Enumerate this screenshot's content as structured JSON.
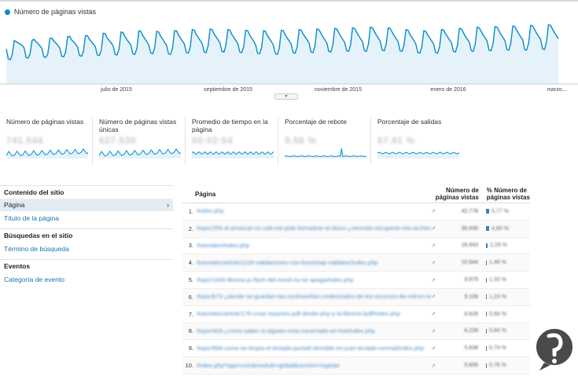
{
  "chart": {
    "legend": "Número de páginas vistas",
    "color": "#058dc7",
    "x_labels": [
      "julio de 2015",
      "septiembre de 2015",
      "noviembre de 2015",
      "enero de 2016",
      "marzo..."
    ]
  },
  "chart_data": {
    "type": "line",
    "series": [
      {
        "name": "Número de páginas vistas",
        "values": [
          58,
          42,
          40,
          48,
          72,
          70,
          68,
          66,
          64,
          60,
          44,
          43,
          50,
          72,
          74,
          70,
          67,
          63,
          59,
          45,
          44,
          50,
          75,
          76,
          71,
          68,
          64,
          60,
          46,
          45,
          53,
          78,
          79,
          73,
          70,
          66,
          61,
          47,
          46,
          54,
          80,
          80,
          74,
          70,
          66,
          62,
          48,
          47,
          56,
          84,
          83,
          76,
          72,
          68,
          63,
          49,
          48,
          58,
          86,
          85,
          78,
          73,
          69,
          64,
          50,
          49,
          59,
          88,
          87,
          80,
          75,
          70,
          65,
          51,
          50,
          60,
          87,
          86,
          79,
          74,
          69,
          64,
          50,
          49,
          59,
          88,
          88,
          81,
          76,
          71,
          66,
          52,
          51,
          62,
          90,
          89,
          82,
          77,
          72,
          67,
          53,
          52,
          63,
          91,
          90,
          83,
          78,
          73,
          68,
          54,
          53,
          64,
          90,
          89,
          82,
          77,
          72,
          67,
          53,
          52,
          62,
          89,
          88,
          81,
          76,
          71,
          65,
          51,
          50,
          60,
          88,
          87,
          80,
          75,
          70,
          64,
          50,
          49,
          60,
          89,
          88,
          81,
          76,
          71,
          66,
          52,
          51,
          62,
          90,
          89,
          83,
          78,
          73,
          68,
          53,
          52,
          63,
          91,
          90,
          84,
          78,
          73,
          68,
          54,
          53,
          64,
          92,
          91,
          85,
          79,
          74,
          69,
          55,
          54,
          65,
          93,
          92,
          86,
          80,
          75,
          70,
          55,
          54,
          66,
          94,
          93,
          87,
          81,
          76,
          71,
          56,
          55,
          66,
          93,
          92,
          86,
          80,
          75,
          70,
          55,
          54,
          64,
          90,
          89,
          82,
          77,
          72,
          66,
          52,
          51,
          61,
          88,
          87,
          81,
          76,
          71,
          66,
          52,
          51,
          62,
          90,
          89,
          83,
          78,
          73,
          68,
          54,
          53,
          64,
          92,
          91,
          85,
          79,
          74,
          69,
          55,
          54,
          66,
          94,
          93,
          87,
          81,
          76,
          71,
          56,
          55,
          67,
          95,
          94,
          88,
          82,
          77,
          72,
          57,
          56,
          68,
          96,
          95,
          89,
          83,
          78,
          73,
          57,
          56,
          68,
          97,
          96,
          90,
          84,
          79,
          74,
          58,
          57,
          69,
          98,
          97,
          91,
          85,
          80,
          75
        ]
      }
    ],
    "x_ticks": [
      "julio de 2015",
      "septiembre de 2015",
      "noviembre de 2015",
      "enero de 2016",
      "marzo..."
    ],
    "grid": false
  },
  "metrics": [
    {
      "label": "Número de páginas vistas",
      "value": "741.544"
    },
    {
      "label": "Número de páginas vistas únicas",
      "value": "627.539"
    },
    {
      "label": "Promedio de tiempo en la página",
      "value": "00:02:54"
    },
    {
      "label": "Porcentaje de rebote",
      "value": "9,56 %"
    },
    {
      "label": "Porcentaje de salidas",
      "value": "67,91 %"
    }
  ],
  "sidebar": {
    "sections": [
      {
        "title": "Contenido del sitio",
        "items": [
          {
            "label": "Página",
            "arrow": "›",
            "active": true
          },
          {
            "label": "Título de la página"
          }
        ]
      },
      {
        "title": "Búsquedas en el sitio",
        "items": [
          {
            "label": "Término de búsqueda"
          }
        ]
      },
      {
        "title": "Eventos",
        "items": [
          {
            "label": "Categoría de evento"
          }
        ]
      }
    ]
  },
  "table": {
    "headers": {
      "page": "Página",
      "views": "Número de páginas vistas",
      "pct": "% Número de páginas vistas"
    },
    "rows": [
      {
        "n": "1.",
        "page": "/index.php",
        "views": "42.778",
        "pct": "5,77 %",
        "frac": 0.058
      },
      {
        "n": "2.",
        "page": "/topic/255-al-arrancar-un-usb-me-pide-formatear-el-disco-¿necesito-recuperar-mis-archivos/index.php",
        "views": "35.630",
        "pct": "4,80 %",
        "frac": 0.048
      },
      {
        "n": "3.",
        "page": "/tutoriales/index.php",
        "views": "16.943",
        "pct": "2,28 %",
        "frac": 0.023
      },
      {
        "n": "4.",
        "page": "/tutoriales/article/1109-validaciones-con-bootstrap-validator/index.php",
        "views": "10.944",
        "pct": "1,48 %",
        "frac": 0.015
      },
      {
        "n": "5.",
        "page": "/topic/1456-libreria-js-flash-del-movil-no-se-apaga/index.php",
        "views": "9.875",
        "pct": "1,33 %",
        "frac": 0.013
      },
      {
        "n": "6.",
        "page": "/topic/673-¿donde-se-guardan-las-contraseñas-credenciales-de-los-recursos-de-red-en-windows-7/index.php",
        "views": "9.106",
        "pct": "1,23 %",
        "frac": 0.012
      },
      {
        "n": "7.",
        "page": "/tutoriales/article/176-crear-reportes-pdf-desde-php-y-la-libreria-fpdf/index.php",
        "views": "6.626",
        "pct": "0,89 %",
        "frac": 0.009
      },
      {
        "n": "8.",
        "page": "/topic/403-¿como-saber-si-alguien-esta-conectado-en-live/index.php",
        "views": "6.239",
        "pct": "0,84 %",
        "frac": 0.0084
      },
      {
        "n": "9.",
        "page": "/topic/998-como-se-limpia-el-teclado-portatil-divisible-en-juan-teclado-normal/index.php",
        "views": "5.838",
        "pct": "0,79 %",
        "frac": 0.0079
      },
      {
        "n": "10.",
        "page": "/index.php?app=core&module=global&section=register",
        "views": "5.605",
        "pct": "0,76 %",
        "frac": 0.0076
      }
    ],
    "ext_icon": "⇗"
  }
}
